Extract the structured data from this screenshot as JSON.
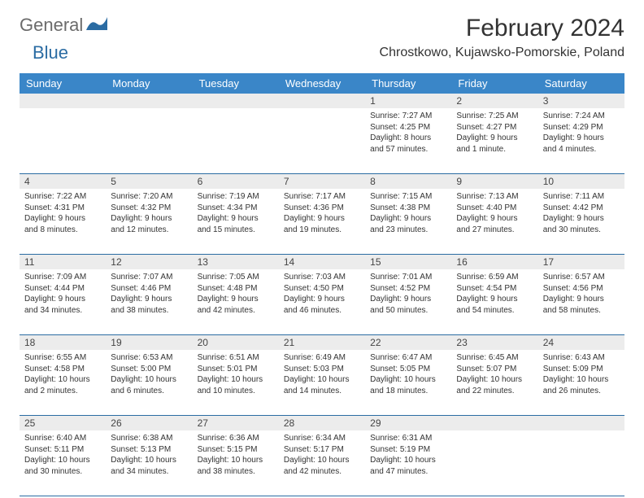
{
  "logo": {
    "part1": "General",
    "part2": "Blue"
  },
  "title": "February 2024",
  "location": "Chrostkowo, Kujawsko-Pomorskie, Poland",
  "colors": {
    "header_bg": "#3a86c8",
    "header_text": "#ffffff",
    "daynum_bg": "#ececec",
    "border": "#2b6ca3",
    "logo_gray": "#6b6b6b",
    "logo_blue": "#2b6ca3",
    "text": "#333333"
  },
  "dayNames": [
    "Sunday",
    "Monday",
    "Tuesday",
    "Wednesday",
    "Thursday",
    "Friday",
    "Saturday"
  ],
  "weeks": [
    [
      {
        "num": "",
        "sunrise": "",
        "sunset": "",
        "daylight": ""
      },
      {
        "num": "",
        "sunrise": "",
        "sunset": "",
        "daylight": ""
      },
      {
        "num": "",
        "sunrise": "",
        "sunset": "",
        "daylight": ""
      },
      {
        "num": "",
        "sunrise": "",
        "sunset": "",
        "daylight": ""
      },
      {
        "num": "1",
        "sunrise": "Sunrise: 7:27 AM",
        "sunset": "Sunset: 4:25 PM",
        "daylight": "Daylight: 8 hours and 57 minutes."
      },
      {
        "num": "2",
        "sunrise": "Sunrise: 7:25 AM",
        "sunset": "Sunset: 4:27 PM",
        "daylight": "Daylight: 9 hours and 1 minute."
      },
      {
        "num": "3",
        "sunrise": "Sunrise: 7:24 AM",
        "sunset": "Sunset: 4:29 PM",
        "daylight": "Daylight: 9 hours and 4 minutes."
      }
    ],
    [
      {
        "num": "4",
        "sunrise": "Sunrise: 7:22 AM",
        "sunset": "Sunset: 4:31 PM",
        "daylight": "Daylight: 9 hours and 8 minutes."
      },
      {
        "num": "5",
        "sunrise": "Sunrise: 7:20 AM",
        "sunset": "Sunset: 4:32 PM",
        "daylight": "Daylight: 9 hours and 12 minutes."
      },
      {
        "num": "6",
        "sunrise": "Sunrise: 7:19 AM",
        "sunset": "Sunset: 4:34 PM",
        "daylight": "Daylight: 9 hours and 15 minutes."
      },
      {
        "num": "7",
        "sunrise": "Sunrise: 7:17 AM",
        "sunset": "Sunset: 4:36 PM",
        "daylight": "Daylight: 9 hours and 19 minutes."
      },
      {
        "num": "8",
        "sunrise": "Sunrise: 7:15 AM",
        "sunset": "Sunset: 4:38 PM",
        "daylight": "Daylight: 9 hours and 23 minutes."
      },
      {
        "num": "9",
        "sunrise": "Sunrise: 7:13 AM",
        "sunset": "Sunset: 4:40 PM",
        "daylight": "Daylight: 9 hours and 27 minutes."
      },
      {
        "num": "10",
        "sunrise": "Sunrise: 7:11 AM",
        "sunset": "Sunset: 4:42 PM",
        "daylight": "Daylight: 9 hours and 30 minutes."
      }
    ],
    [
      {
        "num": "11",
        "sunrise": "Sunrise: 7:09 AM",
        "sunset": "Sunset: 4:44 PM",
        "daylight": "Daylight: 9 hours and 34 minutes."
      },
      {
        "num": "12",
        "sunrise": "Sunrise: 7:07 AM",
        "sunset": "Sunset: 4:46 PM",
        "daylight": "Daylight: 9 hours and 38 minutes."
      },
      {
        "num": "13",
        "sunrise": "Sunrise: 7:05 AM",
        "sunset": "Sunset: 4:48 PM",
        "daylight": "Daylight: 9 hours and 42 minutes."
      },
      {
        "num": "14",
        "sunrise": "Sunrise: 7:03 AM",
        "sunset": "Sunset: 4:50 PM",
        "daylight": "Daylight: 9 hours and 46 minutes."
      },
      {
        "num": "15",
        "sunrise": "Sunrise: 7:01 AM",
        "sunset": "Sunset: 4:52 PM",
        "daylight": "Daylight: 9 hours and 50 minutes."
      },
      {
        "num": "16",
        "sunrise": "Sunrise: 6:59 AM",
        "sunset": "Sunset: 4:54 PM",
        "daylight": "Daylight: 9 hours and 54 minutes."
      },
      {
        "num": "17",
        "sunrise": "Sunrise: 6:57 AM",
        "sunset": "Sunset: 4:56 PM",
        "daylight": "Daylight: 9 hours and 58 minutes."
      }
    ],
    [
      {
        "num": "18",
        "sunrise": "Sunrise: 6:55 AM",
        "sunset": "Sunset: 4:58 PM",
        "daylight": "Daylight: 10 hours and 2 minutes."
      },
      {
        "num": "19",
        "sunrise": "Sunrise: 6:53 AM",
        "sunset": "Sunset: 5:00 PM",
        "daylight": "Daylight: 10 hours and 6 minutes."
      },
      {
        "num": "20",
        "sunrise": "Sunrise: 6:51 AM",
        "sunset": "Sunset: 5:01 PM",
        "daylight": "Daylight: 10 hours and 10 minutes."
      },
      {
        "num": "21",
        "sunrise": "Sunrise: 6:49 AM",
        "sunset": "Sunset: 5:03 PM",
        "daylight": "Daylight: 10 hours and 14 minutes."
      },
      {
        "num": "22",
        "sunrise": "Sunrise: 6:47 AM",
        "sunset": "Sunset: 5:05 PM",
        "daylight": "Daylight: 10 hours and 18 minutes."
      },
      {
        "num": "23",
        "sunrise": "Sunrise: 6:45 AM",
        "sunset": "Sunset: 5:07 PM",
        "daylight": "Daylight: 10 hours and 22 minutes."
      },
      {
        "num": "24",
        "sunrise": "Sunrise: 6:43 AM",
        "sunset": "Sunset: 5:09 PM",
        "daylight": "Daylight: 10 hours and 26 minutes."
      }
    ],
    [
      {
        "num": "25",
        "sunrise": "Sunrise: 6:40 AM",
        "sunset": "Sunset: 5:11 PM",
        "daylight": "Daylight: 10 hours and 30 minutes."
      },
      {
        "num": "26",
        "sunrise": "Sunrise: 6:38 AM",
        "sunset": "Sunset: 5:13 PM",
        "daylight": "Daylight: 10 hours and 34 minutes."
      },
      {
        "num": "27",
        "sunrise": "Sunrise: 6:36 AM",
        "sunset": "Sunset: 5:15 PM",
        "daylight": "Daylight: 10 hours and 38 minutes."
      },
      {
        "num": "28",
        "sunrise": "Sunrise: 6:34 AM",
        "sunset": "Sunset: 5:17 PM",
        "daylight": "Daylight: 10 hours and 42 minutes."
      },
      {
        "num": "29",
        "sunrise": "Sunrise: 6:31 AM",
        "sunset": "Sunset: 5:19 PM",
        "daylight": "Daylight: 10 hours and 47 minutes."
      },
      {
        "num": "",
        "sunrise": "",
        "sunset": "",
        "daylight": ""
      },
      {
        "num": "",
        "sunrise": "",
        "sunset": "",
        "daylight": ""
      }
    ]
  ]
}
